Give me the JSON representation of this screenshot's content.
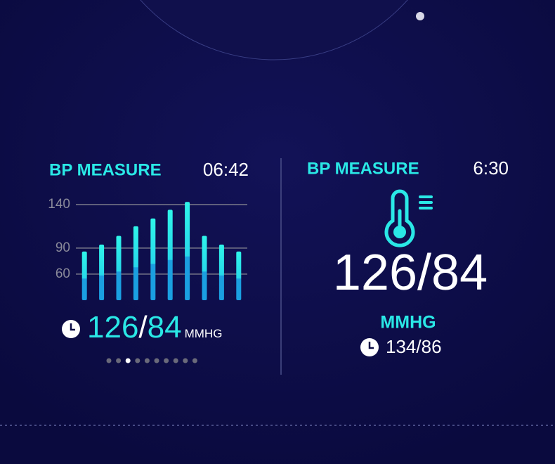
{
  "left": {
    "title": "BP MEASURE",
    "time": "06:42",
    "reading": {
      "systolic": "126",
      "separator": "/",
      "diastolic": "84",
      "unit": "MMHG"
    }
  },
  "chart_data": {
    "type": "bar",
    "values": [
      86,
      94,
      104,
      115,
      124,
      134,
      143,
      104,
      94,
      86
    ],
    "color": "#2ff0e8",
    "ylim": [
      30,
      140
    ],
    "yticks": [
      140,
      90,
      60
    ],
    "grid": true
  },
  "right": {
    "title": "BP MEASURE",
    "time": "6:30",
    "reading": "126/84",
    "unit": "MMHG",
    "previous": "134/86"
  }
}
